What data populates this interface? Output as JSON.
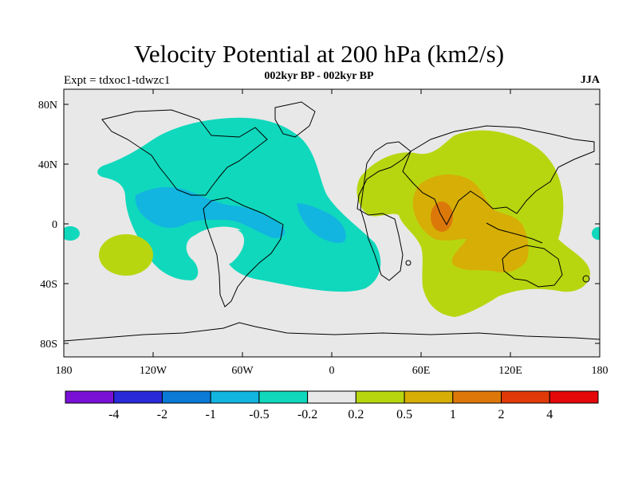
{
  "title": "Velocity Potential at 200 hPa (km2/s)",
  "subtitle": "002kyr BP - 002kyr BP",
  "left_label": "Expt = tdxoc1-tdwzc1",
  "right_label": "JJA",
  "axes": {
    "y_ticks": [
      "80N",
      "40N",
      "0",
      "40S",
      "80S"
    ],
    "x_ticks": [
      "180",
      "120W",
      "60W",
      "0",
      "60E",
      "120E",
      "180"
    ]
  },
  "colorbar": {
    "colors": [
      "#7a10d6",
      "#2a2ad8",
      "#0a7ad6",
      "#12b4e0",
      "#10d8bc",
      "#e8e8e8",
      "#b8d610",
      "#d6ae06",
      "#dc780a",
      "#e03a08",
      "#e40808"
    ],
    "labels": [
      "-4",
      "-2",
      "-1",
      "-0.5",
      "-0.2",
      "0.2",
      "0.5",
      "1",
      "2",
      "4"
    ]
  }
}
